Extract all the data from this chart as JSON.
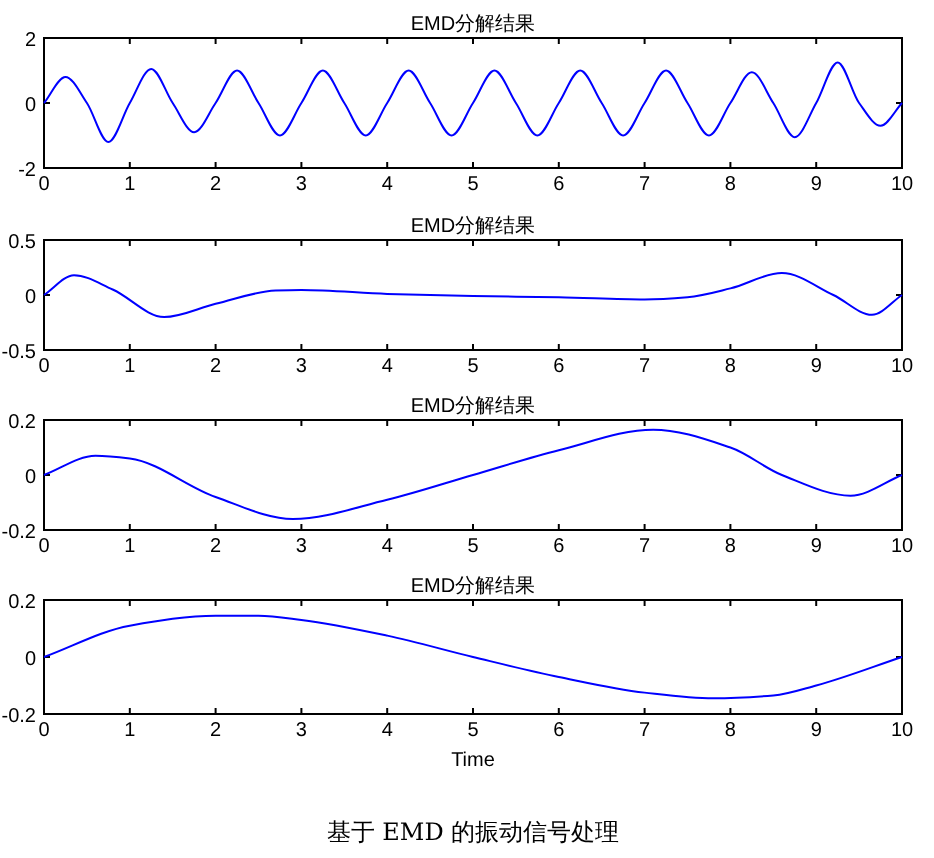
{
  "chart_data": [
    {
      "type": "line",
      "title": "EMD分解结果",
      "xlim": [
        0,
        10
      ],
      "xticks": [
        0,
        1,
        2,
        3,
        4,
        5,
        6,
        7,
        8,
        9,
        10
      ],
      "ylim": [
        -2,
        2
      ],
      "yticks": [
        -2,
        0,
        2
      ],
      "series": [
        {
          "color": "#0000ff",
          "x": [
            0,
            0.25,
            0.5,
            0.75,
            1,
            1.25,
            1.5,
            1.75,
            2,
            2.25,
            2.5,
            2.75,
            3,
            3.25,
            3.5,
            3.75,
            4,
            4.25,
            4.5,
            4.75,
            5,
            5.25,
            5.5,
            5.75,
            6,
            6.25,
            6.5,
            6.75,
            7,
            7.25,
            7.5,
            7.75,
            8,
            8.25,
            8.5,
            8.75,
            9,
            9.25,
            9.5,
            9.75,
            10
          ],
          "values": [
            0,
            0.8,
            0,
            -1.2,
            0,
            1.05,
            0,
            -0.9,
            0,
            1.0,
            0,
            -1.0,
            0,
            1.0,
            0,
            -1.0,
            0,
            1.0,
            0,
            -1.0,
            0,
            1.0,
            0,
            -1.0,
            0,
            1.0,
            0,
            -1.0,
            0,
            1.0,
            0,
            -1.0,
            0,
            0.95,
            0,
            -1.05,
            0,
            1.25,
            0,
            -0.7,
            0
          ]
        }
      ]
    },
    {
      "type": "line",
      "title": "EMD分解结果",
      "xlim": [
        0,
        10
      ],
      "xticks": [
        0,
        1,
        2,
        3,
        4,
        5,
        6,
        7,
        8,
        9,
        10
      ],
      "ylim": [
        -0.5,
        0.5
      ],
      "yticks": [
        -0.5,
        0,
        0.5
      ],
      "series": [
        {
          "color": "#0000ff",
          "x": [
            0,
            0.35,
            0.8,
            1.4,
            2,
            2.7,
            3,
            4,
            5,
            6,
            7,
            7.5,
            8,
            8.6,
            9.2,
            9.65,
            10
          ],
          "values": [
            0,
            0.18,
            0.05,
            -0.2,
            -0.08,
            0.04,
            0.045,
            0.01,
            -0.01,
            -0.02,
            -0.04,
            -0.02,
            0.06,
            0.2,
            0.0,
            -0.18,
            0
          ]
        }
      ]
    },
    {
      "type": "line",
      "title": "EMD分解结果",
      "xlim": [
        0,
        10
      ],
      "xticks": [
        0,
        1,
        2,
        3,
        4,
        5,
        6,
        7,
        8,
        9,
        10
      ],
      "ylim": [
        -0.2,
        0.2
      ],
      "yticks": [
        -0.2,
        0,
        0.2
      ],
      "series": [
        {
          "color": "#0000ff",
          "x": [
            0,
            0.6,
            1,
            2,
            2.9,
            4,
            5,
            6,
            7.1,
            8,
            8.6,
            9.4,
            10
          ],
          "values": [
            0,
            0.07,
            0.06,
            -0.08,
            -0.16,
            -0.09,
            0.0,
            0.09,
            0.165,
            0.1,
            0.0,
            -0.075,
            0
          ]
        }
      ]
    },
    {
      "type": "line",
      "title": "EMD分解结果",
      "xlabel": "Time",
      "xlim": [
        0,
        10
      ],
      "xticks": [
        0,
        1,
        2,
        3,
        4,
        5,
        6,
        7,
        8,
        9,
        10
      ],
      "ylim": [
        -0.2,
        0.2
      ],
      "yticks": [
        -0.2,
        0,
        0.2
      ],
      "annotations": [
        "基于 EMD 的振动信号处理"
      ],
      "series": [
        {
          "color": "#0000ff",
          "x": [
            0,
            1,
            2,
            2.5,
            3,
            4,
            5,
            6,
            7,
            7.8,
            8.5,
            9,
            10
          ],
          "values": [
            0,
            0.11,
            0.145,
            0.145,
            0.13,
            0.075,
            0,
            -0.07,
            -0.125,
            -0.145,
            -0.135,
            -0.1,
            0
          ]
        }
      ]
    }
  ]
}
